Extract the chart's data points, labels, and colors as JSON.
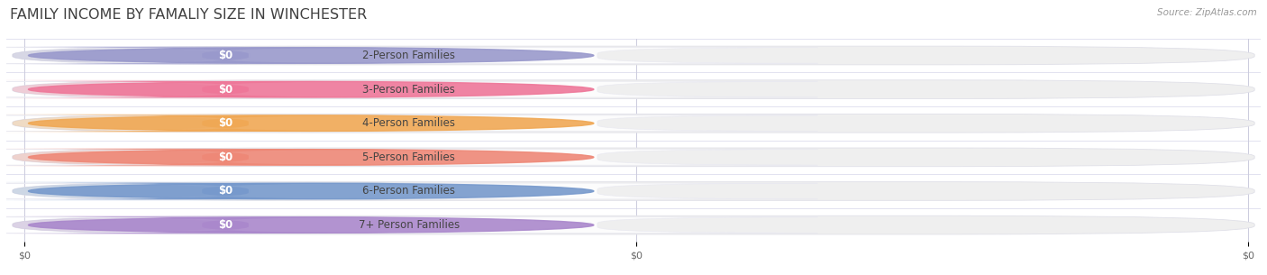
{
  "title": "FAMILY INCOME BY FAMALIY SIZE IN WINCHESTER",
  "source": "Source: ZipAtlas.com",
  "categories": [
    "2-Person Families",
    "3-Person Families",
    "4-Person Families",
    "5-Person Families",
    "6-Person Families",
    "7+ Person Families"
  ],
  "values": [
    0,
    0,
    0,
    0,
    0,
    0
  ],
  "bar_colors": [
    "#9999cc",
    "#ee7799",
    "#f0a855",
    "#ee8877",
    "#7799cc",
    "#aa88cc"
  ],
  "bar_bg_color": "#efefef",
  "bar_border_color": "#e0e0e8",
  "label_text_color": "#444444",
  "value_text_color": "#ffffff",
  "title_color": "#404040",
  "source_color": "#999999",
  "background_color": "#ffffff",
  "title_fontsize": 11.5,
  "label_fontsize": 8.5,
  "value_fontsize": 8.5,
  "grid_color": "#ccccdd",
  "row_sep_color": "#ddddee",
  "xlim_max": 1.0,
  "n_xticks": 3,
  "xtick_labels": [
    "$0",
    "$0",
    "$0"
  ]
}
